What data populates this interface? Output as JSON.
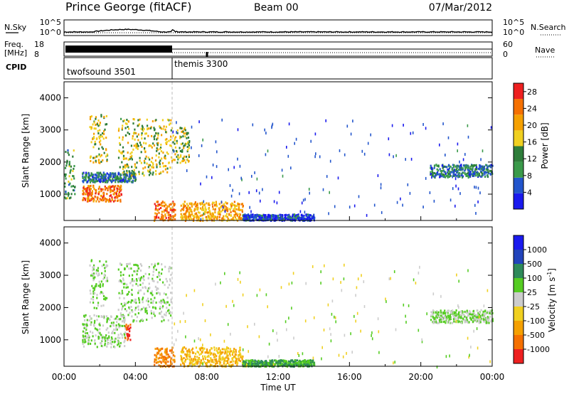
{
  "header": {
    "title": "Prince George (fitACF)",
    "beam": "Beam 00",
    "date": "07/Mar/2012"
  },
  "chart_data": [
    {
      "type": "line",
      "panel": "noise",
      "left_label": "N.Sky",
      "right_label": "N.Search",
      "y_tick_labels": [
        "10^5",
        "10^0"
      ],
      "ylim": [
        "10^0",
        "10^5"
      ],
      "x_start": "00:00",
      "x_end": "00:00",
      "log_scale": true
    },
    {
      "type": "line",
      "panel": "frequency",
      "left_label": "Freq.",
      "left_unit": "[MHz]",
      "left_ticks": [
        18,
        8
      ],
      "right_label": "Nave",
      "right_ticks": [
        60,
        0
      ],
      "segments": [
        {
          "from": "00:00",
          "to": "06:00",
          "freq_mhz": 8
        },
        {
          "from": "06:00",
          "to": "24:00",
          "freq_mhz": 8
        }
      ]
    },
    {
      "type": "table",
      "panel": "cpid",
      "label": "CPID",
      "programs": [
        {
          "name": "twofsound",
          "cpid": "3501",
          "start": "00:00",
          "end": "06:00"
        },
        {
          "name": "themis",
          "cpid": "3300",
          "start": "06:00",
          "end": "24:00"
        }
      ]
    },
    {
      "type": "heatmap",
      "panel": "power",
      "ylabel": "Slant Range [km]",
      "yticks": [
        1000,
        2000,
        3000,
        4000
      ],
      "ylim": [
        180,
        4500
      ],
      "xlim": [
        "00:00",
        "24:00"
      ],
      "colorbar": {
        "label": "Power [dB]",
        "ticks": [
          "4",
          "8",
          "12",
          "16",
          "20",
          "24",
          "28"
        ],
        "range": [
          0,
          30
        ],
        "colors": [
          "#1a1aee",
          "#2255cc",
          "#3a9a4a",
          "#2e7d3a",
          "#f0d020",
          "#f5a000",
          "#f57000",
          "#ee2020"
        ]
      },
      "echo_regions": [
        {
          "t0": 0.0,
          "t1": 0.6,
          "r0": 900,
          "r1": 2400,
          "level": 12
        },
        {
          "t0": 1.0,
          "t1": 3.2,
          "r0": 800,
          "r1": 1300,
          "level": 24
        },
        {
          "t0": 1.0,
          "t1": 4.0,
          "r0": 1400,
          "r1": 1700,
          "level": 8
        },
        {
          "t0": 1.4,
          "t1": 2.4,
          "r0": 2000,
          "r1": 3500,
          "level": 16
        },
        {
          "t0": 3.0,
          "t1": 6.0,
          "r0": 1600,
          "r1": 3400,
          "level": 16
        },
        {
          "t0": 5.0,
          "t1": 6.2,
          "r0": 200,
          "r1": 800,
          "level": 24
        },
        {
          "t0": 6.0,
          "t1": 7.0,
          "r0": 2000,
          "r1": 3100,
          "level": 16
        },
        {
          "t0": 6.5,
          "t1": 10.0,
          "r0": 200,
          "r1": 800,
          "level": 20
        },
        {
          "t0": 10.0,
          "t1": 14.0,
          "r0": 200,
          "r1": 400,
          "level": 4
        },
        {
          "t0": 20.5,
          "t1": 24.0,
          "r0": 1550,
          "r1": 1950,
          "level": 8
        }
      ]
    },
    {
      "type": "heatmap",
      "panel": "velocity",
      "ylabel": "Slant Range [km]",
      "yticks": [
        1000,
        2000,
        3000,
        4000
      ],
      "ylim": [
        180,
        4500
      ],
      "xlim": [
        "00:00",
        "24:00"
      ],
      "xlabel": "Time UT",
      "xtick_labels": [
        "00:00",
        "04:00",
        "08:00",
        "12:00",
        "16:00",
        "20:00",
        "00:00"
      ],
      "colorbar": {
        "label": "Velocity [m s",
        "label_sup": "-1",
        "label_end": "]",
        "ticks": [
          "-1000",
          "-500",
          "-100",
          "-25",
          "25",
          "100",
          "500",
          "1000"
        ],
        "colors": [
          "#ee2020",
          "#f57000",
          "#f5a000",
          "#f0d020",
          "#cccccc",
          "#55cc22",
          "#2e8a5a",
          "#2244bb",
          "#1a1aee"
        ]
      },
      "echo_regions": [
        {
          "t0": 1.0,
          "t1": 3.4,
          "r0": 800,
          "r1": 1800,
          "level": 25
        },
        {
          "t0": 1.4,
          "t1": 2.4,
          "r0": 2000,
          "r1": 3500,
          "level": 25
        },
        {
          "t0": 3.0,
          "t1": 6.0,
          "r0": 1600,
          "r1": 3400,
          "level": 25
        },
        {
          "t0": 3.4,
          "t1": 3.7,
          "r0": 1000,
          "r1": 1500,
          "level": -1000
        },
        {
          "t0": 5.0,
          "t1": 6.2,
          "r0": 200,
          "r1": 800,
          "level": -500
        },
        {
          "t0": 6.5,
          "t1": 10.0,
          "r0": 200,
          "r1": 800,
          "level": -100
        },
        {
          "t0": 10.0,
          "t1": 14.0,
          "r0": 200,
          "r1": 400,
          "level": 100
        },
        {
          "t0": 20.5,
          "t1": 24.0,
          "r0": 1550,
          "r1": 1950,
          "level": 25
        }
      ]
    }
  ]
}
